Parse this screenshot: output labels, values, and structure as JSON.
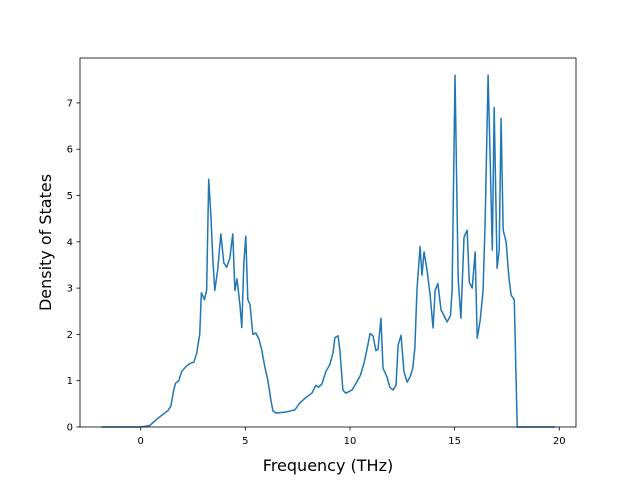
{
  "chart_data": {
    "type": "line",
    "x_label": "Frequency (THz)",
    "y_label": "Density of States",
    "xlim": [
      -2.9,
      20.8
    ],
    "ylim": [
      0,
      7.97
    ],
    "xticks": [
      0,
      5,
      10,
      15,
      20
    ],
    "yticks": [
      0,
      1,
      2,
      3,
      4,
      5,
      6,
      7
    ],
    "grid": false,
    "series": [
      {
        "name": "DOS",
        "color": "#1f77b4",
        "x": [
          -1.87,
          0,
          0.43,
          0.72,
          1.0,
          1.29,
          1.44,
          1.58,
          1.67,
          1.82,
          1.96,
          2.15,
          2.34,
          2.54,
          2.68,
          2.82,
          2.9,
          3.05,
          3.15,
          3.25,
          3.35,
          3.45,
          3.54,
          3.68,
          3.83,
          3.97,
          4.11,
          4.26,
          4.4,
          4.5,
          4.6,
          4.74,
          4.83,
          4.93,
          5.02,
          5.12,
          5.22,
          5.36,
          5.5,
          5.65,
          5.79,
          5.93,
          6.08,
          6.22,
          6.32,
          6.46,
          6.9,
          7.37,
          7.6,
          7.85,
          8.18,
          8.37,
          8.5,
          8.66,
          8.85,
          9.04,
          9.19,
          9.28,
          9.43,
          9.52,
          9.66,
          9.8,
          10.1,
          10.3,
          10.5,
          10.67,
          10.8,
          10.96,
          11.1,
          11.24,
          11.34,
          11.48,
          11.58,
          11.77,
          11.9,
          12.06,
          12.2,
          12.3,
          12.44,
          12.58,
          12.73,
          12.87,
          13.0,
          13.1,
          13.2,
          13.35,
          13.44,
          13.54,
          13.68,
          13.83,
          13.97,
          14.07,
          14.2,
          14.35,
          14.5,
          14.64,
          14.8,
          14.88,
          15.02,
          15.17,
          15.3,
          15.45,
          15.6,
          15.7,
          15.84,
          15.98,
          16.08,
          16.22,
          16.36,
          16.46,
          16.6,
          16.7,
          16.8,
          16.89,
          17.03,
          17.13,
          17.22,
          17.32,
          17.46,
          17.6,
          17.7,
          17.85,
          17.99,
          19.8
        ],
        "values": [
          0,
          0,
          0.03,
          0.15,
          0.25,
          0.35,
          0.45,
          0.8,
          0.95,
          1.0,
          1.2,
          1.3,
          1.37,
          1.4,
          1.6,
          2.0,
          2.9,
          2.75,
          2.95,
          5.35,
          4.6,
          3.6,
          2.95,
          3.4,
          4.17,
          3.55,
          3.45,
          3.65,
          4.17,
          2.95,
          3.2,
          2.65,
          2.15,
          3.55,
          4.12,
          2.75,
          2.65,
          2.0,
          2.03,
          1.9,
          1.65,
          1.3,
          1.0,
          0.58,
          0.35,
          0.3,
          0.32,
          0.37,
          0.52,
          0.62,
          0.73,
          0.9,
          0.86,
          0.93,
          1.2,
          1.35,
          1.6,
          1.93,
          1.97,
          1.65,
          0.8,
          0.73,
          0.8,
          0.95,
          1.12,
          1.38,
          1.65,
          2.02,
          1.97,
          1.65,
          1.68,
          2.35,
          1.27,
          1.08,
          0.86,
          0.8,
          0.9,
          1.77,
          1.98,
          1.19,
          0.97,
          1.08,
          1.27,
          1.7,
          2.95,
          3.9,
          3.28,
          3.78,
          3.4,
          2.85,
          2.14,
          2.95,
          3.1,
          2.53,
          2.4,
          2.27,
          2.4,
          2.95,
          7.6,
          3.2,
          2.35,
          4.1,
          4.25,
          3.13,
          3.0,
          3.78,
          1.92,
          2.3,
          2.95,
          4.47,
          7.6,
          5.77,
          3.82,
          6.9,
          3.43,
          3.82,
          6.67,
          4.25,
          4.0,
          3.2,
          2.85,
          2.75,
          0,
          0
        ]
      }
    ]
  }
}
